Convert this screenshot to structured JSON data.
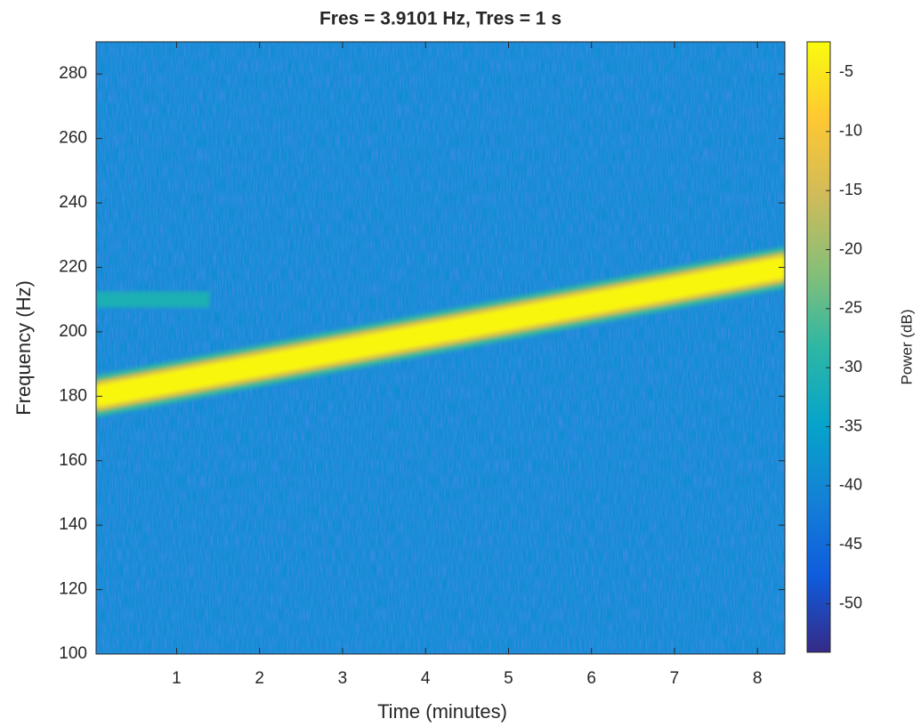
{
  "chart_data": {
    "type": "spectrogram",
    "title": "Fres = 3.9101 Hz, Tres = 1 s",
    "xlabel": "Time (minutes)",
    "ylabel": "Frequency (Hz)",
    "colorbar_label": "Power (dB)",
    "xlim": [
      0.03,
      8.33
    ],
    "xticks": [
      1,
      2,
      3,
      4,
      5,
      6,
      7,
      8
    ],
    "ylim": [
      100,
      290
    ],
    "yticks": [
      100,
      120,
      140,
      160,
      180,
      200,
      220,
      240,
      260,
      280
    ],
    "clim": [
      -54.1,
      -2.4
    ],
    "cticks": [
      -5,
      -10,
      -15,
      -20,
      -25,
      -30,
      -35,
      -40,
      -45,
      -50
    ],
    "colormap": [
      "#352a87",
      "#0f5cdd",
      "#1481d6",
      "#06a4ca",
      "#2eb7a4",
      "#87bf77",
      "#d1bb59",
      "#fec832",
      "#f9fb0e"
    ],
    "background_power": -39,
    "components": [
      {
        "x": [
          0.03,
          8.33
        ],
        "y": [
          180,
          220
        ],
        "power": -3
      },
      {
        "x": [
          0.03,
          1.4
        ],
        "y": [
          210,
          210
        ],
        "power": -31
      }
    ]
  }
}
